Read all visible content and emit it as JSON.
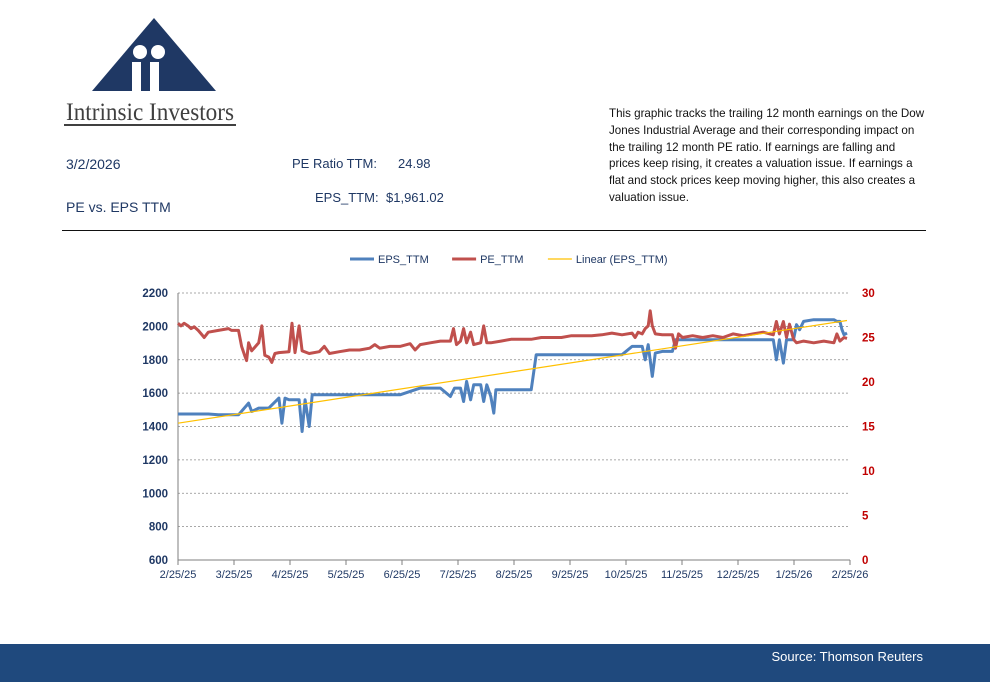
{
  "brand": {
    "name": "Intrinsic Investors"
  },
  "header": {
    "date": "3/2/2026",
    "subtitle": "PE vs. EPS TTM",
    "pe_label": "PE Ratio TTM:",
    "pe_value": "24.98",
    "eps_label": "EPS_TTM:",
    "eps_value": "$1,961.02"
  },
  "description": "This graphic tracks the trailing 12 month earnings on the Dow Jones Industrial Average and their corresponding impact on the trailing 12 month PE ratio.  If earnings are falling and prices keep rising, it creates a valuation issue.  If earnings a flat and stock prices keep moving higher, this also creates a valuation issue.",
  "footer": {
    "source": "Source: Thomson Reuters"
  },
  "colors": {
    "eps": "#4f81bd",
    "pe": "#c0504d",
    "trend": "#ffc000",
    "axis_left": "#1f3864",
    "axis_right": "#c00000",
    "footer": "#1f497d"
  },
  "chart_data": {
    "type": "line",
    "x_ticks": [
      "2/25/25",
      "3/25/25",
      "4/25/25",
      "5/25/25",
      "6/25/25",
      "7/25/25",
      "8/25/25",
      "9/25/25",
      "10/25/25",
      "11/25/25",
      "12/25/25",
      "1/25/26",
      "2/25/26"
    ],
    "y_left": {
      "range": [
        600,
        2200
      ],
      "ticks": [
        "600",
        "800",
        "1000",
        "1200",
        "1400",
        "1600",
        "1800",
        "2000",
        "2200"
      ]
    },
    "y_right": {
      "range": [
        0,
        30
      ],
      "ticks": [
        "0",
        "5",
        "10",
        "15",
        "20",
        "25",
        "30"
      ]
    },
    "grid": true,
    "legend": "top",
    "series": [
      {
        "name": "EPS_TTM",
        "axis": "left",
        "points": [
          [
            0,
            1475
          ],
          [
            1,
            1475
          ],
          [
            2,
            1475
          ],
          [
            3,
            1475
          ],
          [
            4,
            1470
          ],
          [
            5,
            1470
          ],
          [
            6,
            1470
          ],
          [
            7,
            1540
          ],
          [
            7.3,
            1490
          ],
          [
            8,
            1510
          ],
          [
            9,
            1510
          ],
          [
            10,
            1570
          ],
          [
            10.3,
            1420
          ],
          [
            10.6,
            1570
          ],
          [
            11,
            1560
          ],
          [
            12,
            1560
          ],
          [
            12.3,
            1370
          ],
          [
            12.6,
            1560
          ],
          [
            13,
            1400
          ],
          [
            13.3,
            1590
          ],
          [
            14,
            1590
          ],
          [
            16,
            1590
          ],
          [
            18,
            1590
          ],
          [
            20,
            1590
          ],
          [
            22,
            1590
          ],
          [
            24,
            1630
          ],
          [
            26,
            1630
          ],
          [
            27,
            1580
          ],
          [
            27.4,
            1630
          ],
          [
            28,
            1630
          ],
          [
            28.3,
            1550
          ],
          [
            28.6,
            1670
          ],
          [
            29,
            1560
          ],
          [
            29.3,
            1650
          ],
          [
            30,
            1650
          ],
          [
            30.3,
            1550
          ],
          [
            30.6,
            1650
          ],
          [
            31,
            1580
          ],
          [
            31.3,
            1480
          ],
          [
            31.5,
            1620
          ],
          [
            32,
            1620
          ],
          [
            34,
            1620
          ],
          [
            35,
            1620
          ],
          [
            35.5,
            1830
          ],
          [
            36,
            1830
          ],
          [
            38,
            1830
          ],
          [
            40,
            1830
          ],
          [
            42,
            1830
          ],
          [
            44,
            1830
          ],
          [
            45,
            1880
          ],
          [
            46,
            1880
          ],
          [
            46.3,
            1800
          ],
          [
            46.6,
            1890
          ],
          [
            47,
            1700
          ],
          [
            47.3,
            1840
          ],
          [
            48,
            1850
          ],
          [
            49,
            1850
          ],
          [
            49.3,
            1920
          ],
          [
            50,
            1920
          ],
          [
            52,
            1920
          ],
          [
            54,
            1920
          ],
          [
            56,
            1920
          ],
          [
            58,
            1920
          ],
          [
            59,
            1920
          ],
          [
            59.3,
            1800
          ],
          [
            59.6,
            1920
          ],
          [
            60,
            1780
          ],
          [
            60.3,
            1920
          ],
          [
            61,
            1920
          ],
          [
            61.3,
            2010
          ],
          [
            61.6,
            1980
          ],
          [
            62,
            2030
          ],
          [
            63,
            2040
          ],
          [
            64,
            2040
          ],
          [
            65,
            2040
          ],
          [
            65.3,
            2030
          ],
          [
            65.6,
            2030
          ],
          [
            65.8,
            1980
          ],
          [
            66,
            1950
          ],
          [
            66.3,
            1960
          ]
        ]
      },
      {
        "name": "PE_TTM",
        "axis": "right",
        "points": [
          [
            0,
            26.6
          ],
          [
            0.3,
            26.3
          ],
          [
            0.6,
            26.6
          ],
          [
            1,
            26.3
          ],
          [
            1.3,
            26.0
          ],
          [
            1.6,
            26.2
          ],
          [
            2,
            25.8
          ],
          [
            2.3,
            25.4
          ],
          [
            2.6,
            25.0
          ],
          [
            3,
            25.6
          ],
          [
            4,
            25.8
          ],
          [
            5,
            26.0
          ],
          [
            5.3,
            25.8
          ],
          [
            6,
            25.8
          ],
          [
            6.3,
            24.0
          ],
          [
            6.6,
            23.0
          ],
          [
            6.8,
            22.4
          ],
          [
            7,
            24.4
          ],
          [
            7.3,
            23.5
          ],
          [
            8,
            24.4
          ],
          [
            8.3,
            26.3
          ],
          [
            8.6,
            23.0
          ],
          [
            9,
            22.8
          ],
          [
            9.3,
            22.2
          ],
          [
            9.6,
            23.2
          ],
          [
            10,
            23.3
          ],
          [
            11,
            23.4
          ],
          [
            11.3,
            26.6
          ],
          [
            11.6,
            23.3
          ],
          [
            12,
            26.3
          ],
          [
            12.3,
            23.5
          ],
          [
            13,
            23.2
          ],
          [
            14,
            23.4
          ],
          [
            14.5,
            24.0
          ],
          [
            15,
            23.2
          ],
          [
            16,
            23.4
          ],
          [
            17,
            23.6
          ],
          [
            18,
            23.6
          ],
          [
            19,
            23.8
          ],
          [
            19.5,
            24.2
          ],
          [
            20,
            23.8
          ],
          [
            21,
            24.0
          ],
          [
            22,
            24.0
          ],
          [
            23,
            24.3
          ],
          [
            23.5,
            23.6
          ],
          [
            24,
            24.2
          ],
          [
            25,
            24.4
          ],
          [
            26,
            24.6
          ],
          [
            27,
            24.6
          ],
          [
            27.3,
            26.0
          ],
          [
            27.6,
            24.2
          ],
          [
            28,
            24.6
          ],
          [
            28.3,
            26.0
          ],
          [
            28.6,
            24.4
          ],
          [
            29,
            25.6
          ],
          [
            29.3,
            24.2
          ],
          [
            30,
            24.4
          ],
          [
            30.3,
            26.3
          ],
          [
            30.6,
            24.4
          ],
          [
            31,
            24.4
          ],
          [
            32,
            24.6
          ],
          [
            33,
            24.8
          ],
          [
            34,
            24.8
          ],
          [
            35,
            24.8
          ],
          [
            36,
            25.0
          ],
          [
            37,
            25.0
          ],
          [
            38,
            25.0
          ],
          [
            39,
            25.2
          ],
          [
            40,
            25.2
          ],
          [
            41,
            25.2
          ],
          [
            42,
            25.3
          ],
          [
            43,
            25.5
          ],
          [
            44,
            25.3
          ],
          [
            45,
            25.5
          ],
          [
            45.3,
            25.0
          ],
          [
            45.6,
            25.6
          ],
          [
            46,
            25.4
          ],
          [
            46.3,
            26.0
          ],
          [
            46.6,
            26.3
          ],
          [
            46.8,
            28.0
          ],
          [
            47,
            26.3
          ],
          [
            47.3,
            25.4
          ],
          [
            48,
            25.3
          ],
          [
            49,
            25.3
          ],
          [
            49.3,
            23.8
          ],
          [
            49.6,
            25.4
          ],
          [
            50,
            25.0
          ],
          [
            51,
            25.2
          ],
          [
            52,
            25.0
          ],
          [
            53,
            25.2
          ],
          [
            54,
            25.0
          ],
          [
            55,
            25.4
          ],
          [
            56,
            25.2
          ],
          [
            57,
            25.4
          ],
          [
            58,
            25.6
          ],
          [
            59,
            25.3
          ],
          [
            59.3,
            26.8
          ],
          [
            59.6,
            25.4
          ],
          [
            60,
            26.8
          ],
          [
            60.3,
            25.0
          ],
          [
            60.6,
            26.5
          ],
          [
            61,
            24.8
          ],
          [
            61.3,
            24.4
          ],
          [
            62,
            24.6
          ],
          [
            63,
            24.4
          ],
          [
            64,
            24.6
          ],
          [
            65,
            24.4
          ],
          [
            65.3,
            25.4
          ],
          [
            65.6,
            24.6
          ],
          [
            66,
            25.0
          ],
          [
            66.3,
            24.9
          ]
        ]
      },
      {
        "name": "Linear (EPS_TTM)",
        "axis": "left",
        "trendline": true,
        "points": [
          [
            0,
            1420
          ],
          [
            66.3,
            2035
          ]
        ]
      }
    ]
  }
}
